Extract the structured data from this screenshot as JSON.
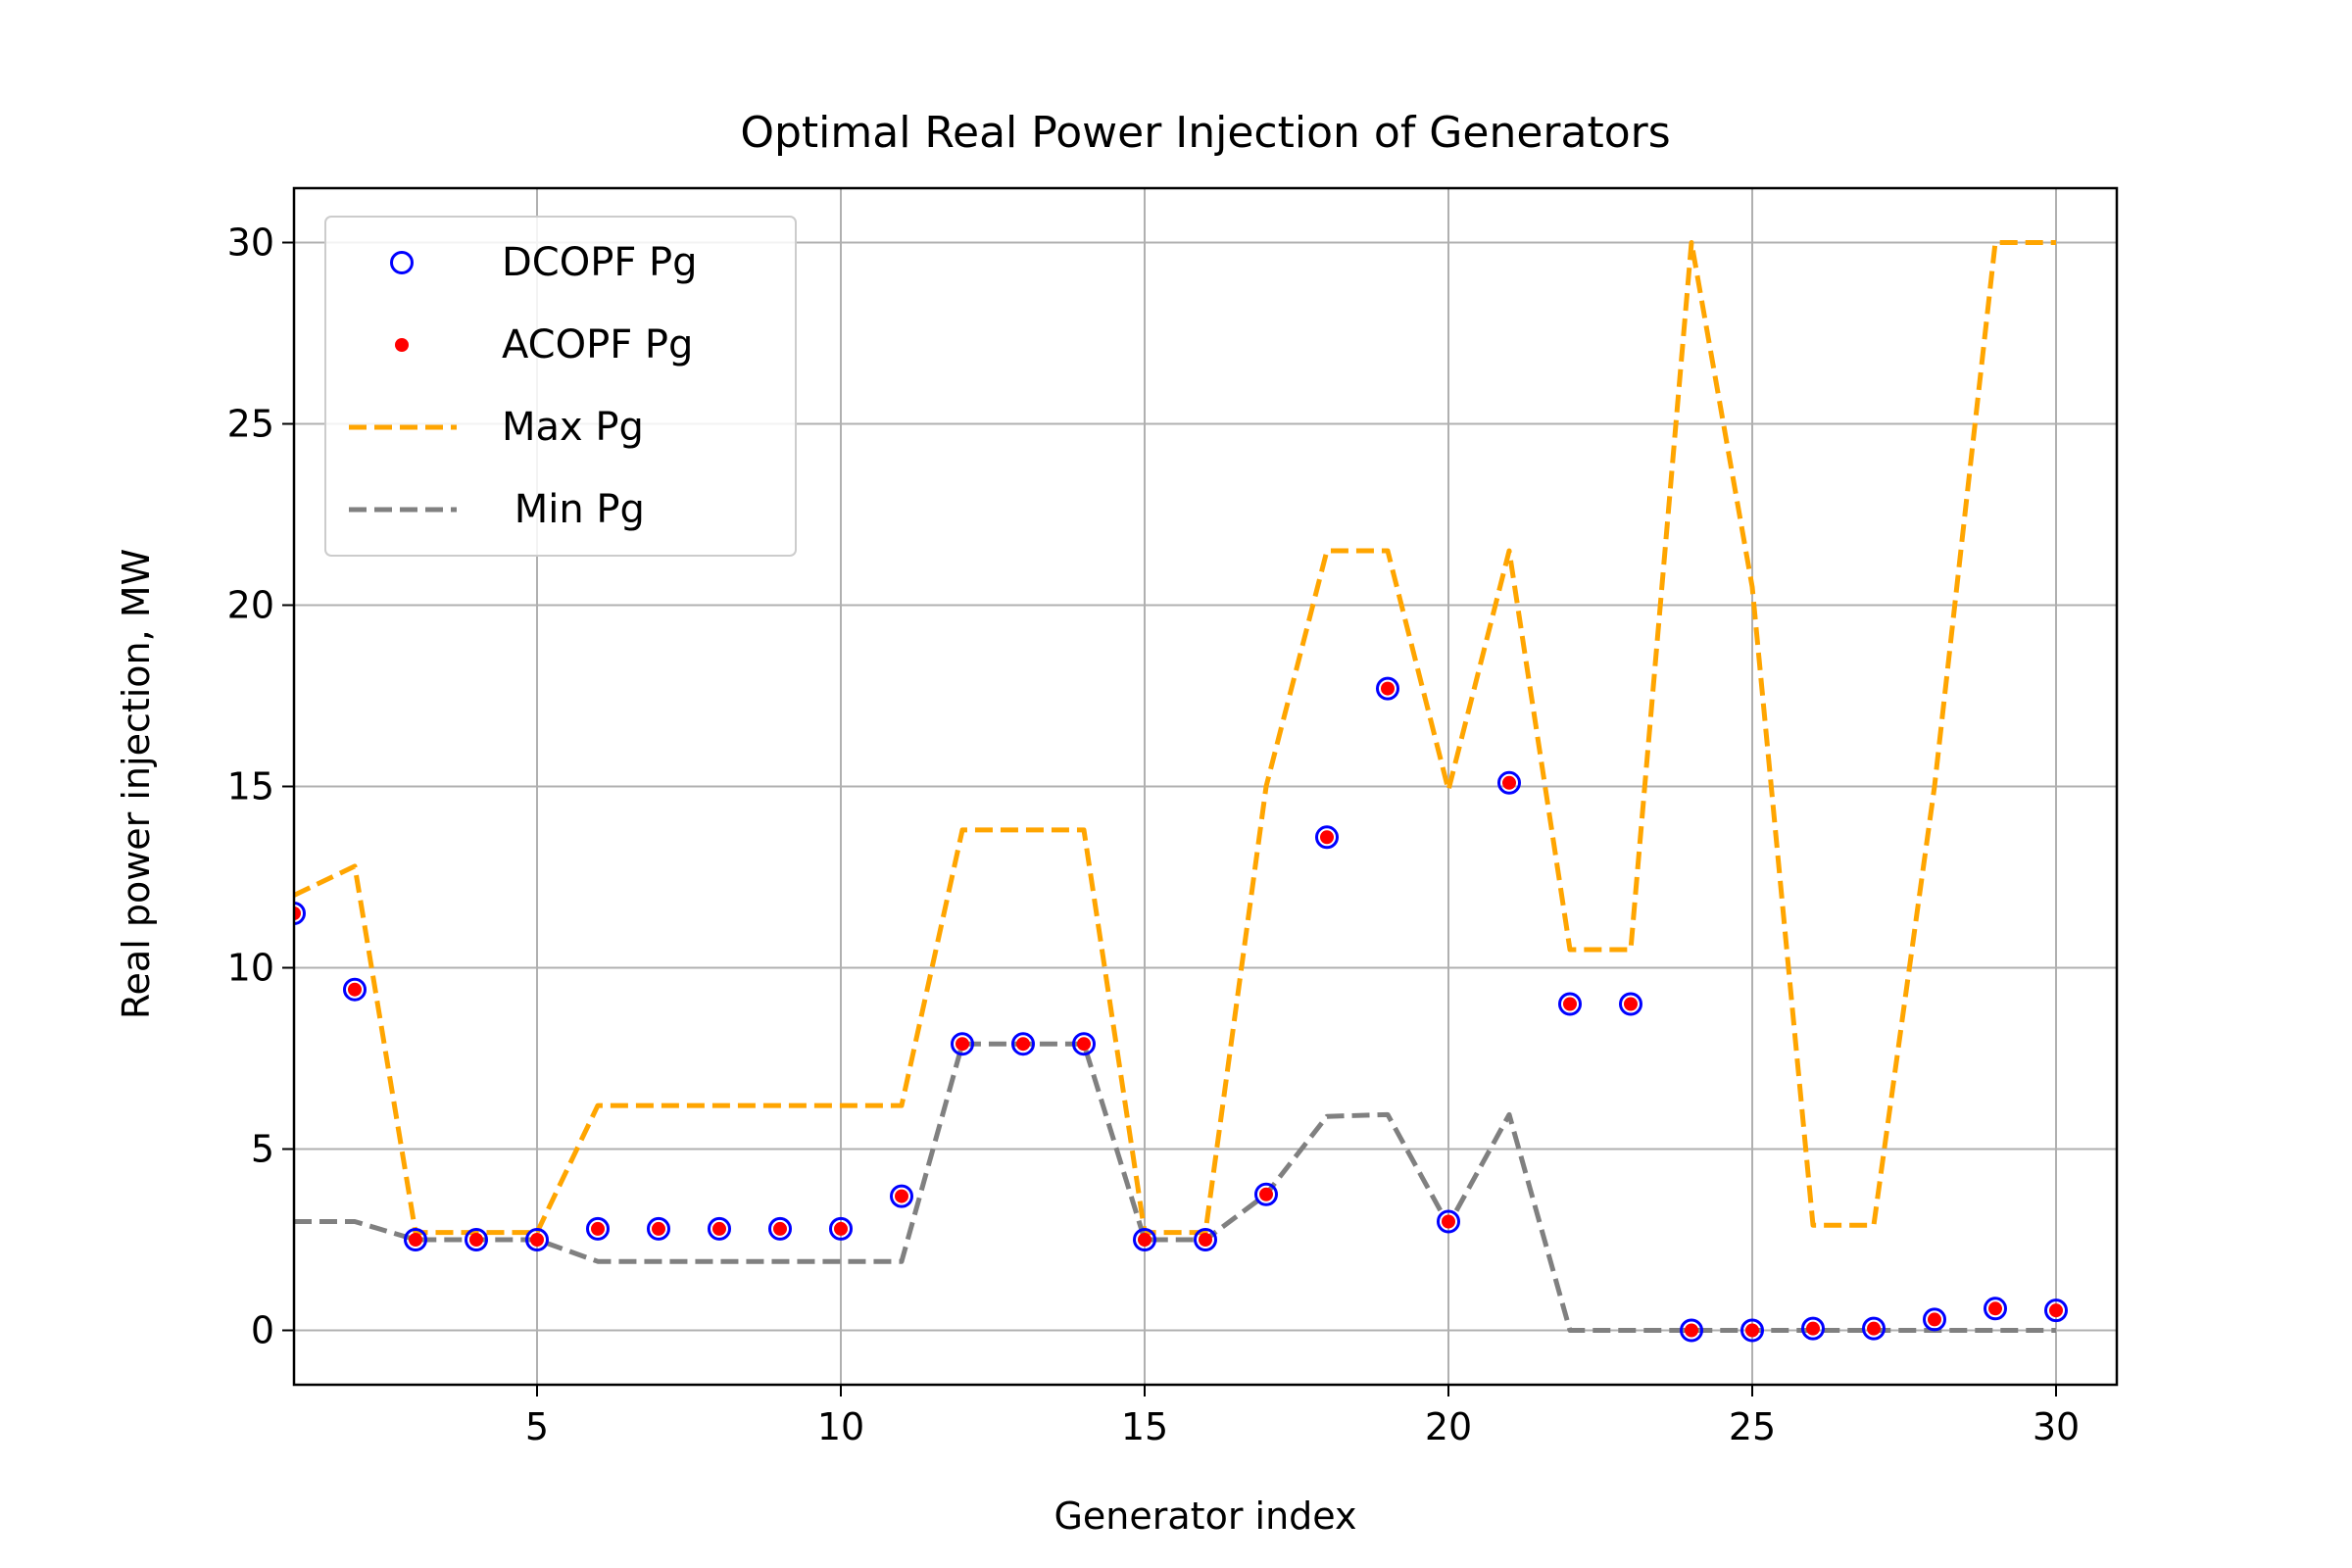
{
  "chart_data": {
    "type": "scatter",
    "title": "Optimal Real Power Injection of Generators",
    "xlabel": "Generator index",
    "ylabel": "Real power injection, MW",
    "xlim": [
      1,
      31
    ],
    "ylim": [
      -1.5,
      31.5
    ],
    "xticks": [
      5,
      10,
      15,
      20,
      25,
      30
    ],
    "yticks": [
      0,
      5,
      10,
      15,
      20,
      25,
      30
    ],
    "grid": true,
    "legend_position": "upper-left",
    "x": [
      1,
      2,
      3,
      4,
      5,
      6,
      7,
      8,
      9,
      10,
      11,
      12,
      13,
      14,
      15,
      16,
      17,
      18,
      19,
      20,
      21,
      22,
      23,
      24,
      25,
      26,
      27,
      28,
      29,
      30
    ],
    "series": [
      {
        "name": "DCOPF Pg",
        "kind": "markers-hollow",
        "color": "#0000ff",
        "values": [
          11.5,
          9.4,
          2.5,
          2.5,
          2.5,
          2.8,
          2.8,
          2.8,
          2.8,
          2.8,
          3.7,
          7.9,
          7.9,
          7.9,
          2.5,
          2.5,
          3.75,
          13.6,
          17.7,
          3.0,
          15.1,
          9.0,
          9.0,
          0.0,
          0.0,
          0.05,
          0.05,
          0.3,
          0.6,
          0.55
        ]
      },
      {
        "name": "ACOPF Pg",
        "kind": "markers-filled",
        "color": "#ff0000",
        "values": [
          11.5,
          9.4,
          2.5,
          2.5,
          2.5,
          2.8,
          2.8,
          2.8,
          2.8,
          2.8,
          3.7,
          7.9,
          7.9,
          7.9,
          2.5,
          2.5,
          3.75,
          13.6,
          17.7,
          3.0,
          15.1,
          9.0,
          9.0,
          0.0,
          0.0,
          0.05,
          0.05,
          0.3,
          0.6,
          0.55
        ]
      },
      {
        "name": "Max Pg",
        "kind": "dashed-line",
        "color": "#ffa500",
        "values": [
          12.0,
          12.8,
          2.7,
          2.7,
          2.7,
          6.2,
          6.2,
          6.2,
          6.2,
          6.2,
          6.2,
          13.8,
          13.8,
          13.8,
          2.7,
          2.7,
          15.0,
          21.5,
          21.5,
          14.9,
          21.5,
          10.5,
          10.5,
          30.0,
          20.5,
          2.9,
          2.9,
          15.0,
          30.0,
          30.0
        ]
      },
      {
        "name": " Min Pg",
        "kind": "dashed-line",
        "color": "#808080",
        "values": [
          3.0,
          3.0,
          2.5,
          2.5,
          2.5,
          1.9,
          1.9,
          1.9,
          1.9,
          1.9,
          1.9,
          7.9,
          7.9,
          7.9,
          2.5,
          2.5,
          3.75,
          5.9,
          5.95,
          2.9,
          5.95,
          0.0,
          0.0,
          0.0,
          0.0,
          0.0,
          0.0,
          0.0,
          0.0,
          0.0
        ]
      }
    ]
  }
}
